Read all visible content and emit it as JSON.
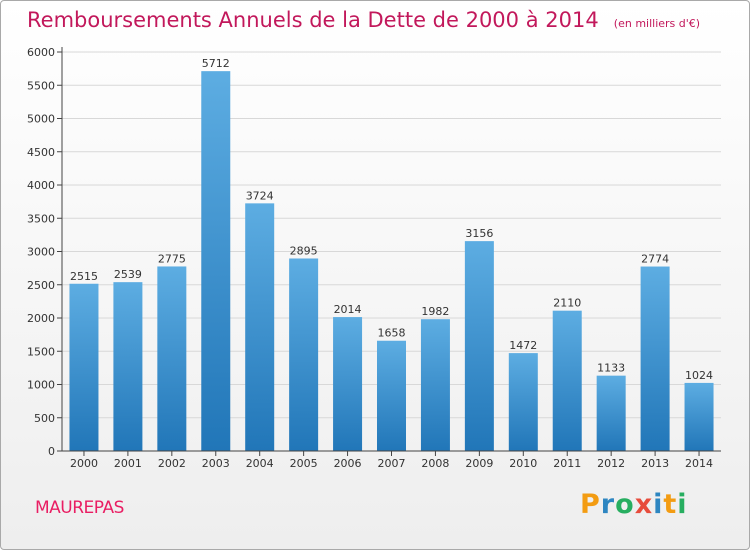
{
  "title": "Remboursements Annuels de la Dette de 2000 à 2014",
  "unit_note": "(en milliers d'€)",
  "commune": "MAUREPAS",
  "brand": {
    "text": "Proxiti",
    "letters": [
      {
        "char": "P",
        "color": "#f39c12"
      },
      {
        "char": "r",
        "color": "#2e86c1"
      },
      {
        "char": "o",
        "color": "#27ae60"
      },
      {
        "char": "x",
        "color": "#e74c3c"
      },
      {
        "char": "i",
        "color": "#2e86c1"
      },
      {
        "char": "t",
        "color": "#f39c12"
      },
      {
        "char": "i",
        "color": "#27ae60"
      }
    ]
  },
  "colors": {
    "title": "#c2185b",
    "bar_top": "#5dade2",
    "bar_bottom": "#2176b8",
    "grid": "#d8d8d8",
    "axis": "#444444"
  },
  "chart_data": {
    "type": "bar",
    "title": "Remboursements Annuels de la Dette de 2000 à 2014",
    "xlabel": "",
    "ylabel": "",
    "categories": [
      "2000",
      "2001",
      "2002",
      "2003",
      "2004",
      "2005",
      "2006",
      "2007",
      "2008",
      "2009",
      "2010",
      "2011",
      "2012",
      "2013",
      "2014"
    ],
    "values": [
      2515,
      2539,
      2775,
      5712,
      3724,
      2895,
      2014,
      1658,
      1982,
      3156,
      1472,
      2110,
      1133,
      2774,
      1024
    ],
    "ylim": [
      0,
      6000
    ],
    "yticks": [
      0,
      500,
      1000,
      1500,
      2000,
      2500,
      3000,
      3500,
      4000,
      4500,
      5000,
      5500,
      6000
    ],
    "grid": true,
    "data_labels": true
  }
}
